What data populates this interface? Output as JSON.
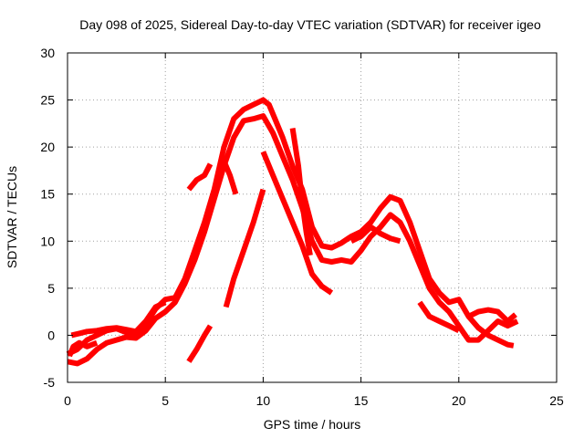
{
  "chart_data": {
    "type": "scatter",
    "title": "Day 098 of 2025, Sidereal Day-to-day VTEC variation (SDTVAR) for receiver igeo",
    "xlabel": "GPS time / hours",
    "ylabel": "SDTVAR / TECUs",
    "xlim": [
      0,
      25
    ],
    "ylim": [
      -5,
      30
    ],
    "xticks": [
      0,
      5,
      10,
      15,
      20,
      25
    ],
    "yticks": [
      -5,
      0,
      5,
      10,
      15,
      20,
      25,
      30
    ],
    "grid": true,
    "marker": "+",
    "color": "#ff0000",
    "series": [
      {
        "name": "satellite-track-1",
        "points": [
          [
            0.0,
            -2.0
          ],
          [
            0.5,
            -1.5
          ],
          [
            1.0,
            -0.5
          ],
          [
            1.5,
            0.0
          ],
          [
            2.0,
            0.5
          ],
          [
            2.5,
            0.7
          ],
          [
            3.0,
            0.3
          ],
          [
            3.5,
            0.0
          ],
          [
            4.0,
            1.2
          ],
          [
            4.5,
            2.8
          ],
          [
            5.0,
            3.8
          ],
          [
            5.5,
            4.0
          ],
          [
            6.0,
            6.0
          ],
          [
            6.5,
            9.0
          ],
          [
            7.0,
            12.0
          ],
          [
            7.5,
            15.5
          ],
          [
            8.0,
            20.0
          ],
          [
            8.5,
            23.0
          ],
          [
            9.0,
            24.0
          ],
          [
            9.5,
            24.5
          ],
          [
            10.0,
            25.0
          ],
          [
            10.3,
            24.5
          ],
          [
            10.6,
            23.0
          ],
          [
            11.0,
            21.0
          ],
          [
            11.5,
            18.0
          ],
          [
            12.0,
            15.5
          ],
          [
            12.5,
            11.5
          ],
          [
            13.0,
            9.5
          ],
          [
            13.5,
            9.3
          ],
          [
            14.0,
            9.8
          ],
          [
            14.5,
            10.5
          ],
          [
            15.0,
            11.0
          ],
          [
            15.5,
            12.0
          ],
          [
            16.0,
            13.5
          ],
          [
            16.5,
            14.7
          ],
          [
            17.0,
            14.3
          ],
          [
            17.5,
            12.0
          ],
          [
            18.0,
            9.0
          ],
          [
            18.5,
            6.0
          ],
          [
            19.0,
            4.5
          ],
          [
            19.5,
            3.5
          ],
          [
            20.0,
            3.8
          ],
          [
            20.5,
            2.0
          ],
          [
            21.0,
            0.8
          ],
          [
            21.5,
            0.0
          ],
          [
            22.0,
            -0.5
          ],
          [
            22.5,
            -1.0
          ],
          [
            22.8,
            -1.1
          ]
        ]
      },
      {
        "name": "satellite-track-2",
        "points": [
          [
            0.0,
            -2.8
          ],
          [
            0.5,
            -3.0
          ],
          [
            1.0,
            -2.5
          ],
          [
            1.5,
            -1.5
          ],
          [
            2.0,
            -0.8
          ],
          [
            2.5,
            -0.5
          ],
          [
            3.0,
            -0.2
          ],
          [
            3.5,
            -0.3
          ],
          [
            4.0,
            0.5
          ],
          [
            4.5,
            1.8
          ],
          [
            5.0,
            2.5
          ],
          [
            5.5,
            3.5
          ],
          [
            6.0,
            5.5
          ],
          [
            6.5,
            8.0
          ],
          [
            7.0,
            11.0
          ],
          [
            7.5,
            14.5
          ],
          [
            8.0,
            18.0
          ],
          [
            8.5,
            21.0
          ],
          [
            9.0,
            22.8
          ],
          [
            9.5,
            23.0
          ],
          [
            10.0,
            23.3
          ],
          [
            10.5,
            21.5
          ],
          [
            11.0,
            19.0
          ],
          [
            11.5,
            16.5
          ],
          [
            12.0,
            13.5
          ],
          [
            12.5,
            10.0
          ],
          [
            13.0,
            8.0
          ],
          [
            13.5,
            7.8
          ],
          [
            14.0,
            8.0
          ],
          [
            14.5,
            7.8
          ],
          [
            15.0,
            9.0
          ],
          [
            15.5,
            10.5
          ],
          [
            16.0,
            11.5
          ],
          [
            16.5,
            12.8
          ],
          [
            17.0,
            12.0
          ],
          [
            17.5,
            10.0
          ],
          [
            18.0,
            7.5
          ],
          [
            18.5,
            5.0
          ],
          [
            19.0,
            3.5
          ],
          [
            19.5,
            2.5
          ],
          [
            20.0,
            1.0
          ],
          [
            20.5,
            -0.5
          ],
          [
            21.0,
            -0.5
          ],
          [
            21.5,
            0.5
          ],
          [
            22.0,
            1.5
          ],
          [
            22.5,
            1.0
          ],
          [
            23.0,
            1.5
          ]
        ]
      },
      {
        "name": "satellite-track-3",
        "points": [
          [
            0.2,
            0.0
          ],
          [
            0.6,
            0.2
          ],
          [
            1.0,
            0.4
          ],
          [
            1.5,
            0.5
          ],
          [
            2.0,
            0.7
          ],
          [
            2.5,
            0.8
          ],
          [
            3.0,
            0.6
          ],
          [
            3.5,
            0.4
          ],
          [
            4.0,
            1.5
          ],
          [
            4.5,
            3.0
          ],
          [
            5.0,
            3.5
          ]
        ]
      },
      {
        "name": "satellite-track-4",
        "points": [
          [
            6.2,
            15.5
          ],
          [
            6.6,
            16.5
          ],
          [
            7.0,
            17.0
          ],
          [
            7.3,
            18.2
          ]
        ]
      },
      {
        "name": "satellite-track-5",
        "points": [
          [
            8.0,
            18.5
          ],
          [
            8.3,
            17.0
          ],
          [
            8.6,
            15.0
          ]
        ]
      },
      {
        "name": "satellite-track-6",
        "points": [
          [
            6.2,
            -2.8
          ],
          [
            6.6,
            -1.5
          ],
          [
            7.0,
            0.0
          ],
          [
            7.3,
            1.0
          ]
        ]
      },
      {
        "name": "satellite-track-7",
        "points": [
          [
            8.1,
            3.0
          ],
          [
            8.5,
            6.0
          ],
          [
            9.0,
            9.0
          ],
          [
            9.5,
            12.0
          ],
          [
            10.0,
            15.5
          ]
        ]
      },
      {
        "name": "satellite-track-8",
        "points": [
          [
            10.0,
            19.5
          ],
          [
            10.5,
            17.0
          ],
          [
            11.0,
            14.5
          ],
          [
            11.5,
            12.0
          ],
          [
            12.0,
            9.5
          ],
          [
            12.5,
            6.5
          ],
          [
            13.0,
            5.2
          ],
          [
            13.5,
            4.5
          ]
        ]
      },
      {
        "name": "satellite-track-9",
        "points": [
          [
            11.5,
            22.0
          ],
          [
            11.8,
            18.0
          ],
          [
            12.0,
            14.0
          ],
          [
            12.2,
            11.0
          ],
          [
            12.4,
            8.5
          ]
        ]
      },
      {
        "name": "satellite-track-10",
        "points": [
          [
            14.5,
            10.0
          ],
          [
            15.0,
            10.5
          ],
          [
            15.5,
            11.5
          ],
          [
            16.0,
            10.8
          ],
          [
            16.5,
            10.3
          ],
          [
            17.0,
            10.0
          ]
        ]
      },
      {
        "name": "satellite-track-11",
        "points": [
          [
            18.0,
            3.5
          ],
          [
            18.5,
            2.0
          ],
          [
            19.0,
            1.5
          ],
          [
            19.5,
            1.0
          ],
          [
            20.0,
            0.5
          ]
        ]
      },
      {
        "name": "satellite-track-12",
        "points": [
          [
            20.5,
            2.0
          ],
          [
            21.0,
            2.5
          ],
          [
            21.5,
            2.7
          ],
          [
            22.0,
            2.5
          ],
          [
            22.5,
            1.5
          ],
          [
            22.9,
            2.2
          ]
        ]
      },
      {
        "name": "satellite-track-13",
        "points": [
          [
            0.1,
            -2.2
          ],
          [
            0.3,
            -1.2
          ],
          [
            0.6,
            -0.8
          ],
          [
            1.0,
            -1.2
          ],
          [
            1.5,
            -0.8
          ]
        ]
      }
    ]
  }
}
